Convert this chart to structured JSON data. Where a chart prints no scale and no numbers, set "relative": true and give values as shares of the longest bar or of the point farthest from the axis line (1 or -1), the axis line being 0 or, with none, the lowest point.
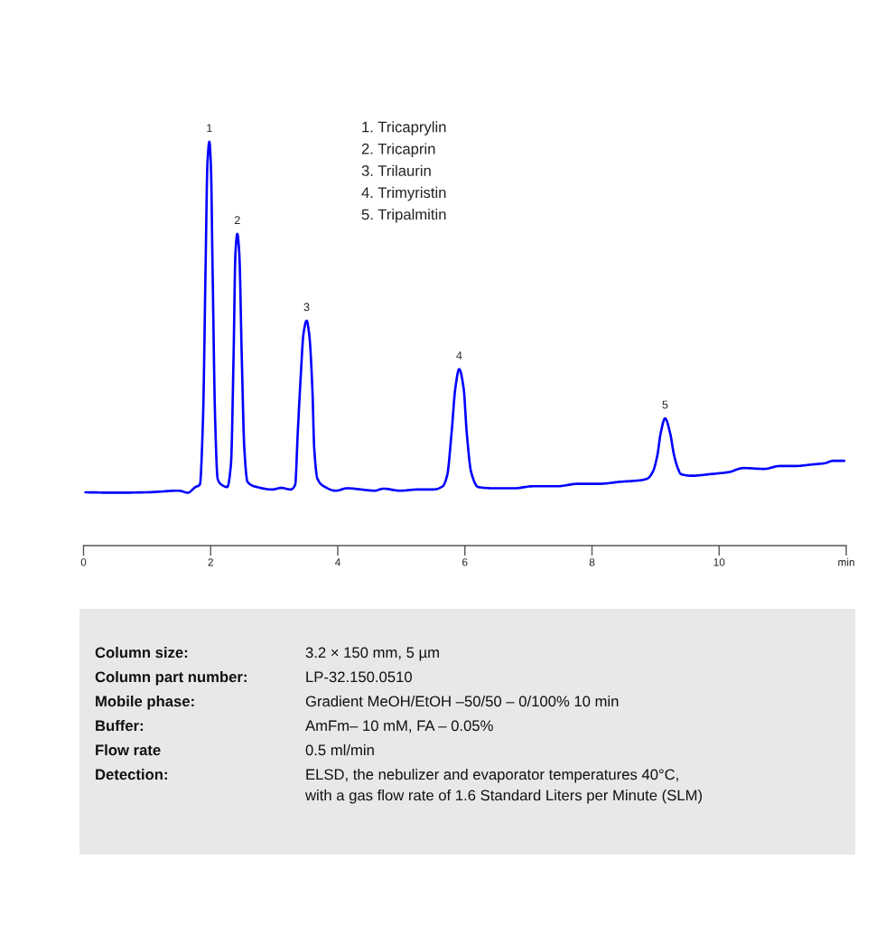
{
  "chart_data": [
    {
      "type": "line",
      "relative": true,
      "line_style": "solid",
      "tick_labels": "x",
      "x": [
        0.03,
        0.5,
        1.0,
        1.5,
        1.64,
        1.76,
        1.83,
        1.88,
        1.92,
        1.95,
        1.98,
        2.005,
        2.03,
        2.07,
        2.11,
        2.17,
        2.26,
        2.32,
        2.36,
        2.39,
        2.42,
        2.45,
        2.49,
        2.53,
        2.58,
        2.73,
        2.97,
        3.11,
        3.26,
        3.33,
        3.37,
        3.42,
        3.46,
        3.51,
        3.55,
        3.6,
        3.63,
        3.68,
        3.78,
        3.97,
        4.15,
        4.37,
        4.58,
        4.72,
        4.98,
        5.27,
        5.5,
        5.65,
        5.72,
        5.79,
        5.85,
        5.91,
        5.98,
        6.03,
        6.1,
        6.21,
        6.45,
        6.78,
        7.07,
        7.45,
        7.78,
        8.11,
        8.44,
        8.77,
        8.87,
        8.96,
        9.03,
        9.08,
        9.15,
        9.23,
        9.29,
        9.35,
        9.4,
        9.58,
        9.86,
        10.15,
        10.38,
        10.71,
        10.95,
        11.19,
        11.47,
        11.66,
        11.8,
        11.97
      ],
      "series": [
        {
          "color": "#0000ff",
          "values": [
            0.132,
            0.131,
            0.132,
            0.136,
            0.131,
            0.145,
            0.151,
            0.316,
            0.688,
            0.949,
            1.0,
            0.934,
            0.688,
            0.316,
            0.166,
            0.151,
            0.145,
            0.203,
            0.464,
            0.725,
            0.772,
            0.725,
            0.464,
            0.24,
            0.158,
            0.145,
            0.139,
            0.143,
            0.139,
            0.151,
            0.278,
            0.427,
            0.524,
            0.557,
            0.524,
            0.39,
            0.24,
            0.166,
            0.147,
            0.136,
            0.142,
            0.139,
            0.136,
            0.141,
            0.136,
            0.139,
            0.139,
            0.147,
            0.173,
            0.278,
            0.39,
            0.437,
            0.39,
            0.278,
            0.181,
            0.145,
            0.142,
            0.142,
            0.147,
            0.147,
            0.153,
            0.153,
            0.158,
            0.162,
            0.166,
            0.184,
            0.225,
            0.278,
            0.315,
            0.278,
            0.225,
            0.192,
            0.177,
            0.173,
            0.177,
            0.182,
            0.192,
            0.19,
            0.197,
            0.197,
            0.201,
            0.204,
            0.21,
            0.21
          ]
        }
      ],
      "xlim": [
        0,
        12
      ],
      "xticks": [
        0,
        2,
        4,
        6,
        8,
        10,
        {
          "value": 12,
          "label": "min"
        }
      ],
      "annotations": [
        {
          "text": "1",
          "x": 1.98,
          "y": 1.0
        },
        {
          "text": "2",
          "x": 2.42,
          "y": 0.772
        },
        {
          "text": "3",
          "x": 3.51,
          "y": 0.557
        },
        {
          "text": "4",
          "x": 5.91,
          "y": 0.437
        },
        {
          "text": "5",
          "x": 9.15,
          "y": 0.315
        },
        "1. Tricaprylin",
        "2. Tricaprin",
        "3. Trilaurin",
        "4. Trimyristin",
        "5. Tripalmitin"
      ]
    },
    {
      "type": "other",
      "annotations": [
        "Column size:",
        "3.2 × 150 mm, 5 µm",
        "Column part number:",
        "LP-32.150.0510",
        "Mobile phase:",
        "Gradient MeOH/EtOH –50/50 – 0/100% 10 min",
        "Buffer:",
        "AmFm– 10 mM, FA – 0.05%",
        "Flow rate",
        "0.5 ml/min",
        "Detection:",
        "ELSD, the nebulizer and evaporator temperatures 40°C,\nwith a gas flow rate of 1.6 Standard Liters per Minute (SLM)"
      ]
    }
  ]
}
